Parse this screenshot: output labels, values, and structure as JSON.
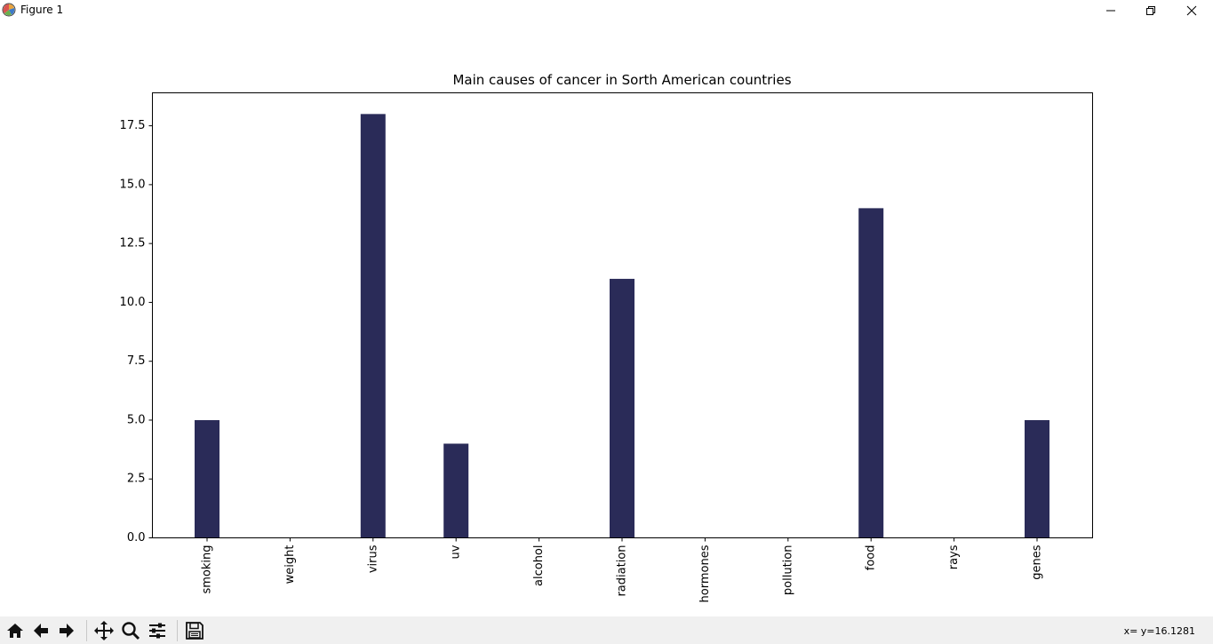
{
  "window": {
    "title": "Figure 1",
    "minimize_icon": "minimize-icon",
    "maximize_icon": "restore-icon",
    "close_icon": "close-icon"
  },
  "toolbar": {
    "buttons": [
      "home-icon",
      "back-arrow-icon",
      "forward-arrow-icon",
      "pan-icon",
      "zoom-icon",
      "configure-subplots-icon",
      "save-icon"
    ],
    "coord_readout": "x= y=16.1281"
  },
  "chart_data": {
    "type": "bar",
    "title": "Main causes of cancer in Sorth American countries",
    "xlabel": "",
    "ylabel": "",
    "categories": [
      "smoking",
      "weight",
      "virus",
      "uv",
      "alcohol",
      "radiation",
      "hormones",
      "pollution",
      "food",
      "rays",
      "genes"
    ],
    "values": [
      5,
      0,
      18,
      4,
      0,
      11,
      0,
      0,
      14,
      0,
      5
    ],
    "ylim": [
      0,
      18.9
    ],
    "yticks": [
      "0.0",
      "2.5",
      "5.0",
      "7.5",
      "10.0",
      "12.5",
      "15.0",
      "17.5"
    ],
    "bar_color": "#2a2b58",
    "grid": false,
    "tick_label_rotation": "vertical"
  }
}
